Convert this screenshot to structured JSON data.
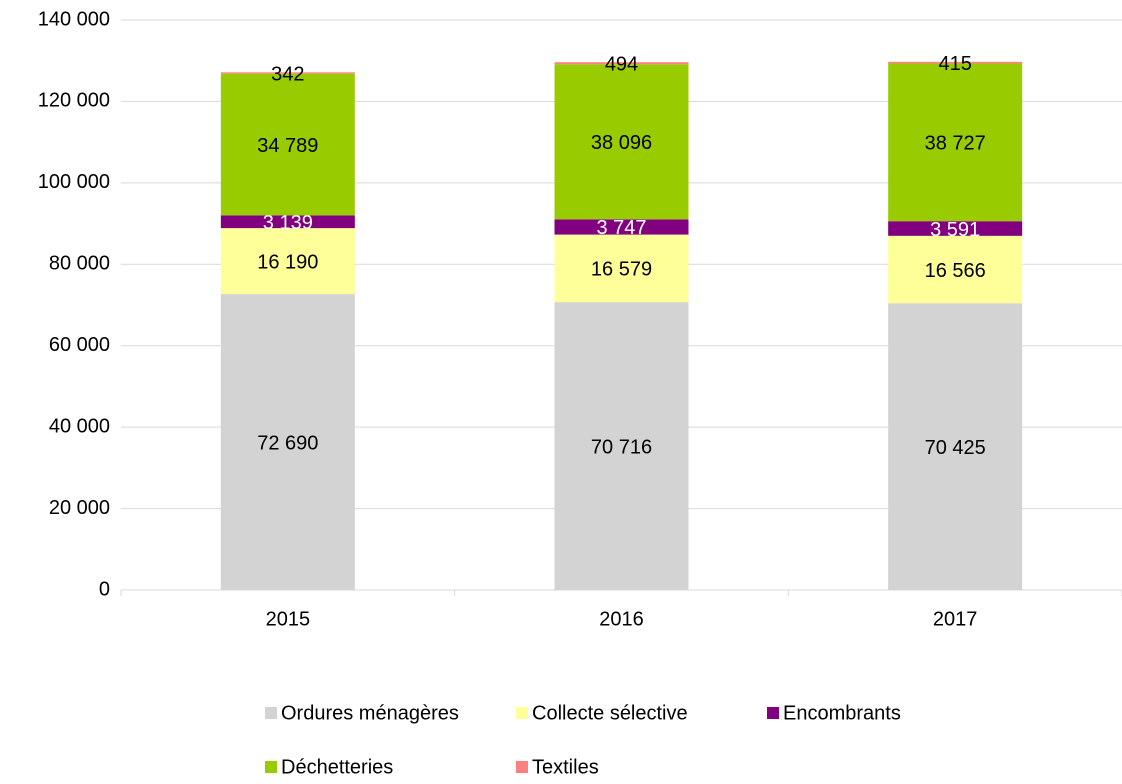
{
  "chart_data": {
    "type": "stacked_bar",
    "categories": [
      "2015",
      "2016",
      "2017"
    ],
    "series": [
      {
        "name": "Ordures ménagères",
        "color": "#d3d3d3",
        "label_color": "#000000",
        "values": [
          72690,
          70716,
          70425
        ],
        "value_labels": [
          "72 690",
          "70 716",
          "70 425"
        ]
      },
      {
        "name": "Collecte sélective",
        "color": "#ffff99",
        "label_color": "#000000",
        "values": [
          16190,
          16579,
          16566
        ],
        "value_labels": [
          "16 190",
          "16 579",
          "16 566"
        ]
      },
      {
        "name": "Encombrants",
        "color": "#800080",
        "label_color": "#ffffff",
        "values": [
          3139,
          3747,
          3591
        ],
        "value_labels": [
          "3 139",
          "3 747",
          "3 591"
        ]
      },
      {
        "name": "Déchetteries",
        "color": "#99cc00",
        "label_color": "#000000",
        "values": [
          34789,
          38096,
          38727
        ],
        "value_labels": [
          "34 789",
          "38 096",
          "38 727"
        ]
      },
      {
        "name": "Textiles",
        "color": "#ff8080",
        "label_color": "#000000",
        "values": [
          342,
          494,
          415
        ],
        "value_labels": [
          "342",
          "494",
          "415"
        ]
      }
    ],
    "ylim": [
      0,
      140000
    ],
    "yticks": [
      0,
      {
        "value": 20000,
        "label": "20 000"
      },
      {
        "value": 40000,
        "label": "40 000"
      },
      {
        "value": 60000,
        "label": "60 000"
      },
      {
        "value": 80000,
        "label": "80 000"
      },
      {
        "value": 100000,
        "label": "100 000"
      },
      {
        "value": 120000,
        "label": "120 000"
      },
      {
        "value": 140000,
        "label": "140 000"
      }
    ],
    "grid": true
  }
}
